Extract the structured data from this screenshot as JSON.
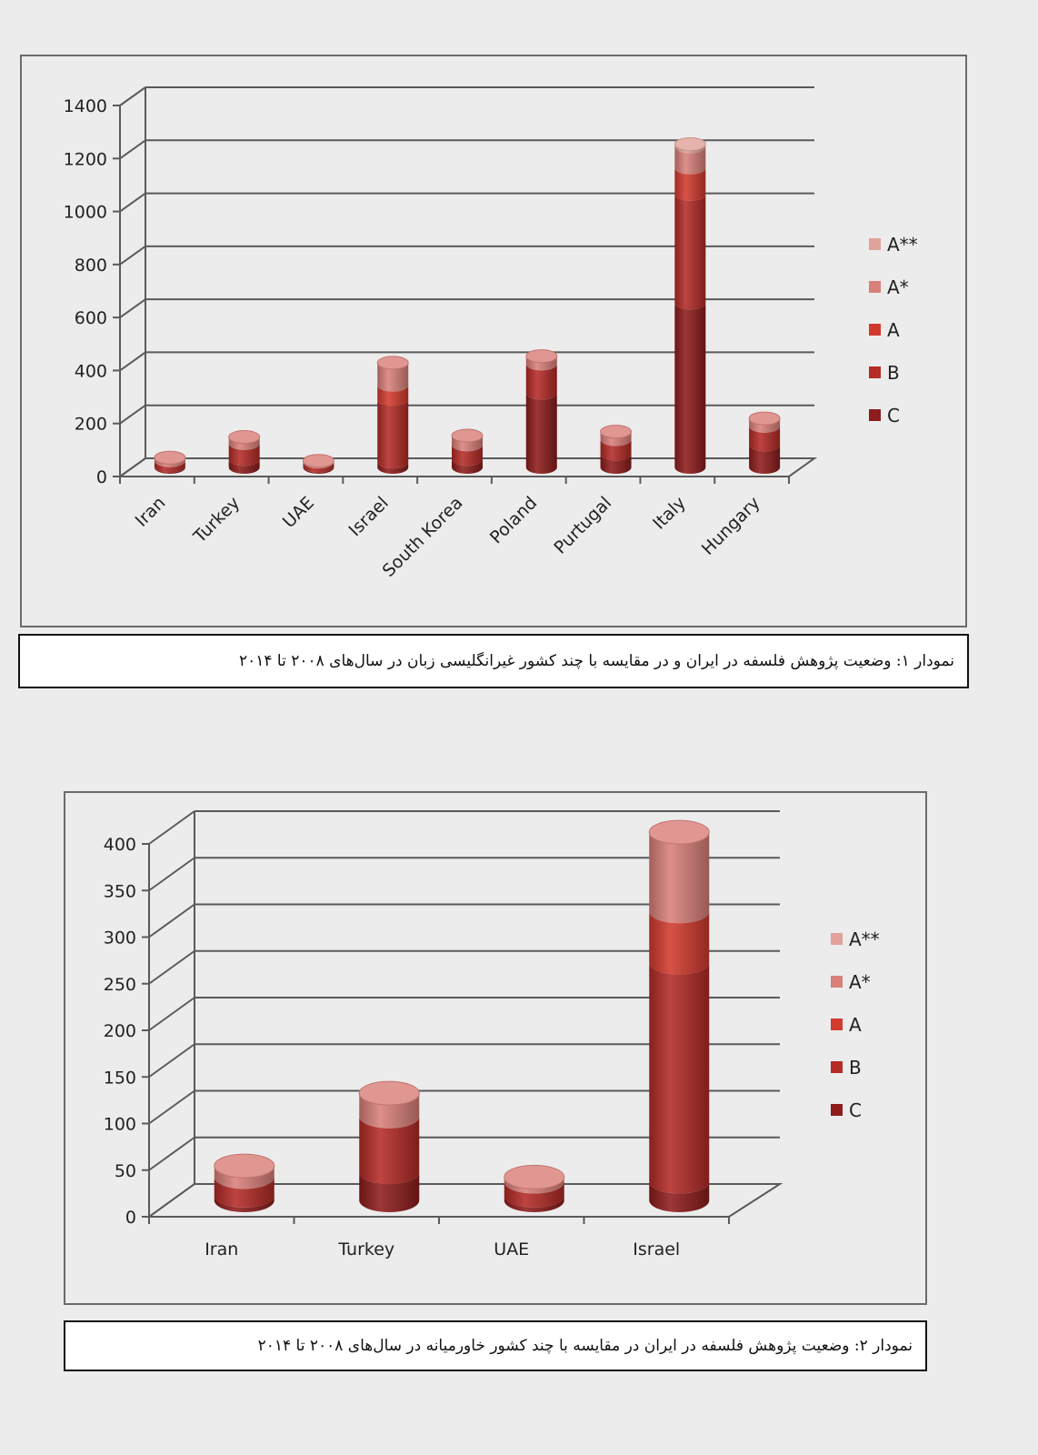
{
  "chart_data": [
    {
      "type": "bar",
      "subtype": "stacked-3d-cylinder",
      "categories": [
        "Iran",
        "Turkey",
        "UAE",
        "Israel",
        "South Korea",
        "Poland",
        "Purtugal",
        "Italy",
        "Hungary"
      ],
      "series": [
        {
          "name": "C",
          "values": [
            5,
            30,
            5,
            20,
            30,
            280,
            50,
            620,
            85
          ]
        },
        {
          "name": "B",
          "values": [
            20,
            60,
            15,
            235,
            55,
            110,
            55,
            410,
            70
          ]
        },
        {
          "name": "A",
          "values": [
            0,
            0,
            0,
            55,
            0,
            0,
            0,
            100,
            0
          ]
        },
        {
          "name": "A*",
          "values": [
            12,
            25,
            5,
            85,
            35,
            30,
            30,
            80,
            30
          ]
        },
        {
          "name": "A**",
          "values": [
            0,
            0,
            0,
            0,
            0,
            0,
            0,
            10,
            0
          ]
        }
      ],
      "legend_order": [
        "A**",
        "A*",
        "A",
        "B",
        "C"
      ],
      "legend_position": "right",
      "ylim": [
        0,
        1400
      ],
      "yticks": [
        0,
        200,
        400,
        600,
        800,
        1000,
        1200,
        1400
      ],
      "grid": true,
      "colors": {
        "C": "#8e1c1c",
        "B": "#b42b27",
        "A": "#d23a2e",
        "A*": "#d9807a",
        "A**": "#e0a29a"
      }
    },
    {
      "type": "bar",
      "subtype": "stacked-3d-cylinder",
      "categories": [
        "Iran",
        "Turkey",
        "UAE",
        "Israel"
      ],
      "series": [
        {
          "name": "C",
          "values": [
            5,
            30,
            5,
            20
          ]
        },
        {
          "name": "B",
          "values": [
            20,
            60,
            15,
            235
          ]
        },
        {
          "name": "A",
          "values": [
            0,
            0,
            0,
            55
          ]
        },
        {
          "name": "A*",
          "values": [
            12,
            25,
            5,
            85
          ]
        },
        {
          "name": "A**",
          "values": [
            0,
            0,
            0,
            0
          ]
        }
      ],
      "legend_order": [
        "A**",
        "A*",
        "A",
        "B",
        "C"
      ],
      "legend_position": "right",
      "ylim": [
        0,
        400
      ],
      "yticks": [
        0,
        50,
        100,
        150,
        200,
        250,
        300,
        350,
        400
      ],
      "grid": true,
      "colors": {
        "C": "#8e1c1c",
        "B": "#b42b27",
        "A": "#d23a2e",
        "A*": "#d9807a",
        "A**": "#e0a29a"
      }
    }
  ],
  "captions": {
    "chart1": "نمودار ۱: وضعیت پژوهش فلسفه در ایران و در مقایسه با چند کشور غیرانگلیسی زبان در سال‌های ۲۰۰۸ تا ۲۰۱۴",
    "chart2": "نمودار ۲: وضعیت پژوهش فلسفه در ایران در مقایسه با چند کشور خاورمیانه در سال‌های ۲۰۰۸ تا ۲۰۱۴"
  }
}
